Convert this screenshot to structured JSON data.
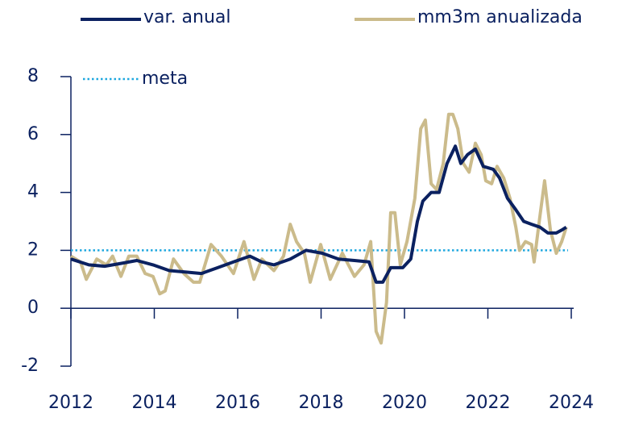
{
  "chart_data": {
    "type": "line",
    "xlim": [
      2012,
      2024
    ],
    "xticks": [
      2012,
      2014,
      2016,
      2018,
      2020,
      2022,
      2024
    ],
    "ylim": [
      -2,
      8
    ],
    "yticks": [
      -2,
      0,
      2,
      4,
      6,
      8
    ],
    "series": [
      {
        "name": "var. anual",
        "color": "#0b2160",
        "x": [
          2012.0,
          2012.43,
          2012.81,
          2013.2,
          2013.58,
          2013.97,
          2014.36,
          2014.74,
          2015.13,
          2015.52,
          2015.9,
          2016.29,
          2016.58,
          2016.87,
          2017.26,
          2017.64,
          2018.03,
          2018.42,
          2018.8,
          2019.15,
          2019.32,
          2019.48,
          2019.67,
          2019.96,
          2020.15,
          2020.31,
          2020.44,
          2020.64,
          2020.83,
          2021.02,
          2021.22,
          2021.35,
          2021.51,
          2021.7,
          2021.89,
          2022.13,
          2022.28,
          2022.47,
          2022.67,
          2022.86,
          2023.05,
          2023.25,
          2023.44,
          2023.64,
          2023.77,
          2023.88
        ],
        "values": [
          1.7,
          1.5,
          1.45,
          1.55,
          1.65,
          1.5,
          1.3,
          1.25,
          1.2,
          1.4,
          1.6,
          1.8,
          1.6,
          1.5,
          1.7,
          2.0,
          1.9,
          1.7,
          1.65,
          1.6,
          0.9,
          0.9,
          1.4,
          1.4,
          1.7,
          3.0,
          3.7,
          4.0,
          4.0,
          5.0,
          5.6,
          5.0,
          5.3,
          5.5,
          4.9,
          4.8,
          4.5,
          3.8,
          3.4,
          3.0,
          2.9,
          2.8,
          2.6,
          2.6,
          2.7,
          2.8
        ]
      },
      {
        "name": "mm3m anualizada",
        "color": "#cbbb8b",
        "x": [
          2012.0,
          2012.23,
          2012.37,
          2012.62,
          2012.85,
          2013.0,
          2013.2,
          2013.39,
          2013.58,
          2013.78,
          2013.97,
          2014.13,
          2014.26,
          2014.46,
          2014.71,
          2014.94,
          2015.09,
          2015.36,
          2015.61,
          2015.9,
          2016.15,
          2016.39,
          2016.58,
          2016.87,
          2017.1,
          2017.26,
          2017.41,
          2017.6,
          2017.74,
          2017.99,
          2018.22,
          2018.51,
          2018.8,
          2019.03,
          2019.19,
          2019.32,
          2019.44,
          2019.57,
          2019.67,
          2019.77,
          2019.9,
          2020.06,
          2020.25,
          2020.39,
          2020.5,
          2020.64,
          2020.77,
          2020.93,
          2021.06,
          2021.16,
          2021.28,
          2021.41,
          2021.55,
          2021.7,
          2021.84,
          2021.95,
          2022.09,
          2022.22,
          2022.38,
          2022.53,
          2022.67,
          2022.76,
          2022.9,
          2023.05,
          2023.11,
          2023.25,
          2023.36,
          2023.5,
          2023.64,
          2023.77,
          2023.88
        ],
        "values": [
          1.8,
          1.6,
          1.0,
          1.7,
          1.5,
          1.8,
          1.1,
          1.8,
          1.8,
          1.2,
          1.1,
          0.5,
          0.6,
          1.7,
          1.2,
          0.9,
          0.9,
          2.2,
          1.8,
          1.2,
          2.3,
          1.0,
          1.7,
          1.3,
          1.8,
          2.9,
          2.3,
          1.9,
          0.9,
          2.2,
          1.0,
          1.9,
          1.1,
          1.5,
          2.3,
          -0.8,
          -1.2,
          0.2,
          3.3,
          3.3,
          1.5,
          2.3,
          3.8,
          6.2,
          6.5,
          4.3,
          4.1,
          5.0,
          6.7,
          6.7,
          6.2,
          5.0,
          4.7,
          5.7,
          5.3,
          4.4,
          4.3,
          4.9,
          4.5,
          3.8,
          2.8,
          2.0,
          2.3,
          2.2,
          1.6,
          3.2,
          4.4,
          2.7,
          1.9,
          2.3,
          2.8
        ]
      }
    ],
    "reference_lines": [
      {
        "name": "meta",
        "value": 2,
        "color": "#1ea7df"
      }
    ]
  }
}
